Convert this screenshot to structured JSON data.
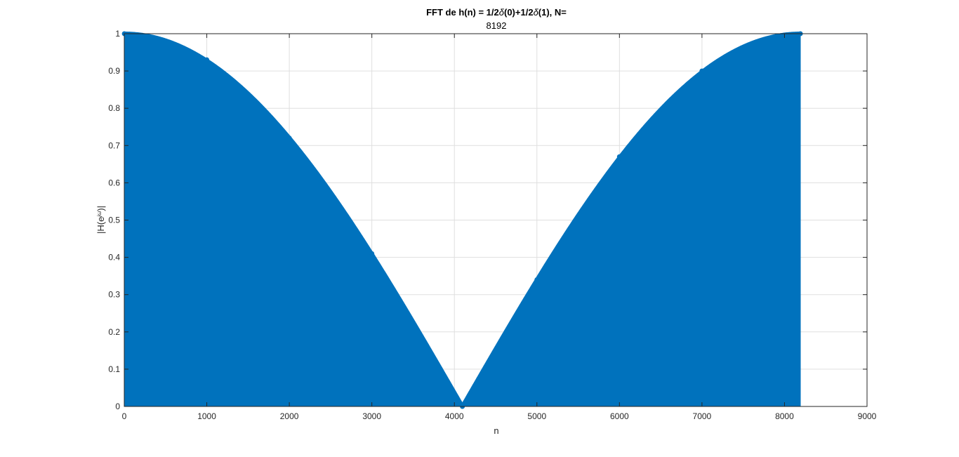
{
  "chart_data": {
    "type": "stem",
    "title_parts": [
      "FFT de  h(n) = 1/2",
      "δ",
      "(0)+1/2",
      "δ",
      "(1), N="
    ],
    "subtitle": "8192",
    "xlabel": "n",
    "ylabel_parts": [
      "|H(e",
      "jω",
      ")|"
    ],
    "xlim": [
      0,
      9000
    ],
    "ylim": [
      0,
      1
    ],
    "xticks": [
      0,
      1000,
      2000,
      3000,
      4000,
      5000,
      6000,
      7000,
      8000,
      9000
    ],
    "yticks": [
      0,
      0.1,
      0.2,
      0.3,
      0.4,
      0.5,
      0.6,
      0.7,
      0.8,
      0.9,
      1
    ],
    "xtick_labels": [
      "0",
      "1000",
      "2000",
      "3000",
      "4000",
      "5000",
      "6000",
      "7000",
      "8000",
      "9000"
    ],
    "ytick_labels": [
      "0",
      "0.1",
      "0.2",
      "0.3",
      "0.4",
      "0.5",
      "0.6",
      "0.7",
      "0.8",
      "0.9",
      "1"
    ],
    "grid": true,
    "series": [
      {
        "color": "#0072BD",
        "N": 8192,
        "x_start": 1,
        "x_end": 8192,
        "function": "|cos(pi*(n-1)/8192)|",
        "values_sampled": {
          "x": [
            1,
            1000,
            2000,
            3000,
            4097,
            5000,
            6000,
            7000,
            8192
          ],
          "y": [
            1.0,
            0.93,
            0.72,
            0.41,
            0.0,
            0.34,
            0.67,
            0.9,
            1.0
          ]
        }
      }
    ]
  }
}
